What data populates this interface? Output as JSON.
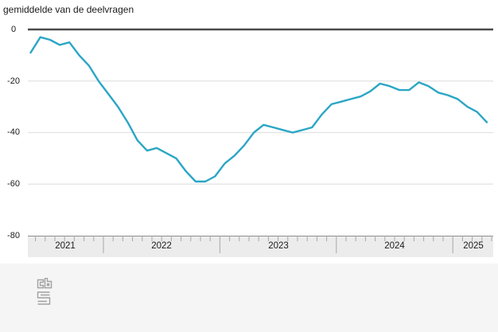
{
  "header": {
    "title": "gemiddelde van de deelvragen"
  },
  "chart_data": {
    "type": "line",
    "title": "gemiddelde van de deelvragen",
    "x": {
      "unit": "month",
      "start": "2021-05",
      "end": "2025-04",
      "year_labels": [
        "2021",
        "2022",
        "2023",
        "2024",
        "2025"
      ]
    },
    "y": {
      "ticks": [
        0,
        -20,
        -40,
        -60,
        -80
      ],
      "tick_labels": [
        "0",
        "-20",
        "-40",
        "-60",
        "-80"
      ],
      "ylim": [
        -80,
        0
      ]
    },
    "grid": true,
    "legend": "none",
    "series": [
      {
        "name": "gemiddelde van de deelvragen",
        "color": "#2ba6c5",
        "values": [
          -9,
          -3,
          -4,
          -6,
          -5,
          -10,
          -14,
          -20,
          -25,
          -30,
          -36,
          -43,
          -47,
          -46,
          -48,
          -50,
          -55,
          -59,
          -59,
          -57,
          -52,
          -49,
          -45,
          -40,
          -37,
          -38,
          -39,
          -40,
          -39,
          -38,
          -33,
          -29,
          -28,
          -27,
          -26,
          -24,
          -21,
          -22,
          -23.5,
          -23.5,
          -20.5,
          -22,
          -24.5,
          -25.5,
          -27,
          -30,
          -32,
          -36
        ]
      }
    ]
  },
  "colors": {
    "line": "#2ba6c5",
    "zero_axis": "#4a4a4a",
    "gridline": "#e2e2e2",
    "axis_band_bg": "#ececec",
    "axis_band_border": "#909090",
    "tick": "#a8a8a8",
    "text": "#1a1a1a",
    "footer_bg": "#f5f5f5",
    "logo": "#a2a2a2"
  },
  "footer": {
    "logo": "cbs-logo"
  }
}
